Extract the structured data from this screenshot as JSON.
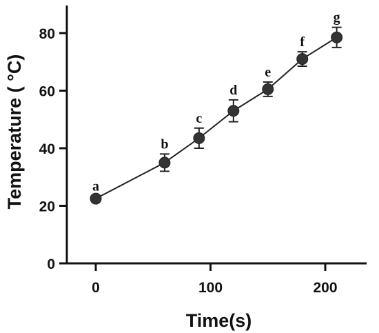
{
  "chart_data": {
    "type": "line",
    "xlabel": "Time(s)",
    "ylabel": "Temperature ( °C)",
    "xlim": [
      -20,
      235
    ],
    "ylim": [
      0,
      90
    ],
    "xticks": [
      0,
      100,
      200
    ],
    "yticks": [
      0,
      20,
      40,
      60,
      80
    ],
    "grid": false,
    "series": [
      {
        "points": [
          {
            "x": 0,
            "y": 22.5,
            "err": 0.8,
            "label": "a"
          },
          {
            "x": 60,
            "y": 35,
            "err": 3,
            "label": "b"
          },
          {
            "x": 90,
            "y": 43.5,
            "err": 3.5,
            "label": "c"
          },
          {
            "x": 120,
            "y": 53,
            "err": 3.8,
            "label": "d"
          },
          {
            "x": 150,
            "y": 60.5,
            "err": 2.5,
            "label": "e"
          },
          {
            "x": 180,
            "y": 71,
            "err": 2.5,
            "label": "f"
          },
          {
            "x": 210,
            "y": 78.5,
            "err": 3.5,
            "label": "g"
          }
        ]
      }
    ]
  }
}
